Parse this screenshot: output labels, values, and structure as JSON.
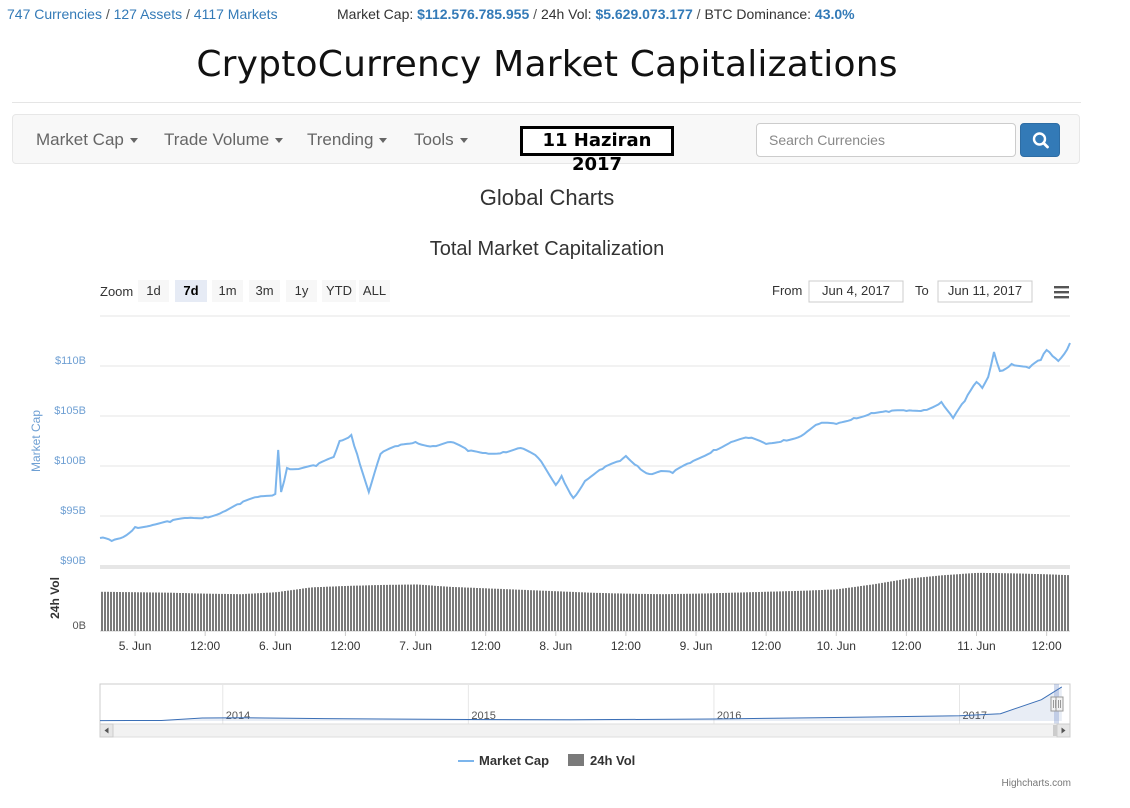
{
  "header": {
    "currencies": "747 Currencies",
    "assets": "127 Assets",
    "markets": "4117 Markets",
    "market_cap_label": "Market Cap:",
    "market_cap_value": "$112.576.785.955",
    "vol_label": "24h Vol:",
    "vol_value": "$5.629.073.177",
    "dominance_label": "BTC Dominance:",
    "dominance_value": "43.0%"
  },
  "site_title": "CryptoCurrency Market Capitalizations",
  "nav": {
    "items": [
      "Market Cap",
      "Trade Volume",
      "Trending",
      "Tools"
    ],
    "date_badge": "11 Haziran 2017",
    "search_placeholder": "Search Currencies",
    "search_icon": "search-icon"
  },
  "page_heading": "Global Charts",
  "chart_ui": {
    "zoom_label": "Zoom",
    "zoom_buttons": [
      "1d",
      "7d",
      "1m",
      "3m",
      "1y",
      "YTD",
      "ALL"
    ],
    "zoom_selected": "7d",
    "from_label": "From",
    "from_value": "Jun 4, 2017",
    "to_label": "To",
    "to_value": "Jun 11, 2017",
    "menu_icon": "hamburger-menu-icon",
    "credit": "Highcharts.com",
    "colors": {
      "market_cap": "#7cb5ec",
      "volume": "#434348"
    }
  },
  "chart_data": {
    "type": "line",
    "title": "Total Market Capitalization",
    "xlabel": "",
    "x_tick_labels": [
      "5. Jun",
      "12:00",
      "6. Jun",
      "12:00",
      "7. Jun",
      "12:00",
      "8. Jun",
      "12:00",
      "9. Jun",
      "12:00",
      "10. Jun",
      "12:00",
      "11. Jun",
      "12:00"
    ],
    "x_range": [
      "Jun 4, 2017 18:00",
      "Jun 11, 2017 16:00"
    ],
    "panes": [
      {
        "ylabel": "Market Cap",
        "y_tick_labels": [
          "$90B",
          "$95B",
          "$100B",
          "$105B",
          "$110B"
        ],
        "ylim": [
          90,
          115
        ],
        "unit": "billion USD",
        "grid": true,
        "series": [
          {
            "name": "Market Cap",
            "points": [
              [
                "Jun 4 18:00",
                92.8
              ],
              [
                "Jun 4 20:00",
                92.5
              ],
              [
                "Jun 4 22:00",
                92.9
              ],
              [
                "Jun 5 00:00",
                93.9
              ],
              [
                "Jun 5 03:00",
                94.1
              ],
              [
                "Jun 5 06:00",
                94.4
              ],
              [
                "Jun 5 09:00",
                94.8
              ],
              [
                "Jun 5 12:00",
                94.9
              ],
              [
                "Jun 5 15:00",
                95.4
              ],
              [
                "Jun 5 18:00",
                96.2
              ],
              [
                "Jun 5 21:00",
                96.9
              ],
              [
                "Jun 6 00:00",
                97.2
              ],
              [
                "Jun 6 00:30",
                101.6
              ],
              [
                "Jun 6 01:00",
                97.4
              ],
              [
                "Jun 6 02:00",
                99.8
              ],
              [
                "Jun 6 04:00",
                99.7
              ],
              [
                "Jun 6 07:00",
                100.0
              ],
              [
                "Jun 6 10:00",
                100.9
              ],
              [
                "Jun 6 11:00",
                102.5
              ],
              [
                "Jun 6 13:00",
                103.1
              ],
              [
                "Jun 6 14:00",
                101.2
              ],
              [
                "Jun 6 16:00",
                97.4
              ],
              [
                "Jun 6 18:00",
                101.2
              ],
              [
                "Jun 6 21:00",
                102.0
              ],
              [
                "Jun 7 00:00",
                102.4
              ],
              [
                "Jun 7 03:00",
                102.0
              ],
              [
                "Jun 7 06:00",
                102.4
              ],
              [
                "Jun 7 09:00",
                101.5
              ],
              [
                "Jun 7 12:00",
                101.3
              ],
              [
                "Jun 7 15:00",
                101.4
              ],
              [
                "Jun 7 18:00",
                101.8
              ],
              [
                "Jun 7 21:00",
                100.8
              ],
              [
                "Jun 8 00:00",
                98.1
              ],
              [
                "Jun 8 01:00",
                99.0
              ],
              [
                "Jun 8 03:00",
                96.8
              ],
              [
                "Jun 8 05:00",
                98.5
              ],
              [
                "Jun 8 08:00",
                99.7
              ],
              [
                "Jun 8 11:00",
                100.5
              ],
              [
                "Jun 8 12:00",
                101.0
              ],
              [
                "Jun 8 14:00",
                100.0
              ],
              [
                "Jun 8 16:00",
                99.2
              ],
              [
                "Jun 8 18:00",
                99.5
              ],
              [
                "Jun 8 20:00",
                99.3
              ],
              [
                "Jun 8 23:00",
                100.3
              ],
              [
                "Jun 9 03:00",
                101.6
              ],
              [
                "Jun 9 06:00",
                102.4
              ],
              [
                "Jun 9 09:00",
                102.8
              ],
              [
                "Jun 9 12:00",
                102.2
              ],
              [
                "Jun 9 15:00",
                102.6
              ],
              [
                "Jun 9 18:00",
                103.0
              ],
              [
                "Jun 9 21:00",
                104.2
              ],
              [
                "Jun 10 00:00",
                104.2
              ],
              [
                "Jun 10 03:00",
                104.8
              ],
              [
                "Jun 10 06:00",
                105.3
              ],
              [
                "Jun 10 09:00",
                105.4
              ],
              [
                "Jun 10 12:00",
                105.5
              ],
              [
                "Jun 10 15:00",
                105.6
              ],
              [
                "Jun 10 18:00",
                106.4
              ],
              [
                "Jun 10 20:00",
                104.8
              ],
              [
                "Jun 10 22:00",
                106.5
              ],
              [
                "Jun 11 00:00",
                108.4
              ],
              [
                "Jun 11 01:00",
                107.8
              ],
              [
                "Jun 11 02:00",
                108.9
              ],
              [
                "Jun 11 03:00",
                111.4
              ],
              [
                "Jun 11 04:00",
                109.5
              ],
              [
                "Jun 11 06:00",
                110.2
              ],
              [
                "Jun 11 09:00",
                109.8
              ],
              [
                "Jun 11 11:00",
                110.6
              ],
              [
                "Jun 11 12:00",
                111.6
              ],
              [
                "Jun 11 13:00",
                111.0
              ],
              [
                "Jun 11 14:00",
                110.5
              ],
              [
                "Jun 11 15:00",
                111.2
              ],
              [
                "Jun 11 16:00",
                112.3
              ]
            ]
          }
        ]
      },
      {
        "ylabel": "24h Vol",
        "y_tick_labels": [
          "0B"
        ],
        "type": "column",
        "series": [
          {
            "name": "24h Vol",
            "unit": "billion USD",
            "ylim": [
              0,
              6.5
            ],
            "points": [
              [
                "Jun 4 18:00",
                4.05
              ],
              [
                "Jun 5 00:00",
                4.0
              ],
              [
                "Jun 5 06:00",
                3.95
              ],
              [
                "Jun 5 12:00",
                3.85
              ],
              [
                "Jun 5 18:00",
                3.8
              ],
              [
                "Jun 6 00:00",
                4.0
              ],
              [
                "Jun 6 06:00",
                4.5
              ],
              [
                "Jun 6 12:00",
                4.65
              ],
              [
                "Jun 6 18:00",
                4.75
              ],
              [
                "Jun 7 00:00",
                4.8
              ],
              [
                "Jun 7 06:00",
                4.55
              ],
              [
                "Jun 7 12:00",
                4.4
              ],
              [
                "Jun 7 18:00",
                4.25
              ],
              [
                "Jun 8 00:00",
                4.1
              ],
              [
                "Jun 8 06:00",
                3.95
              ],
              [
                "Jun 8 12:00",
                3.85
              ],
              [
                "Jun 8 18:00",
                3.8
              ],
              [
                "Jun 9 00:00",
                3.85
              ],
              [
                "Jun 9 06:00",
                3.95
              ],
              [
                "Jun 9 12:00",
                4.05
              ],
              [
                "Jun 9 18:00",
                4.15
              ],
              [
                "Jun 10 00:00",
                4.3
              ],
              [
                "Jun 10 06:00",
                4.8
              ],
              [
                "Jun 10 12:00",
                5.4
              ],
              [
                "Jun 10 18:00",
                5.75
              ],
              [
                "Jun 11 00:00",
                6.0
              ],
              [
                "Jun 11 06:00",
                5.95
              ],
              [
                "Jun 11 12:00",
                5.85
              ],
              [
                "Jun 11 16:00",
                5.75
              ]
            ]
          }
        ]
      }
    ],
    "navigator": {
      "x_tick_labels": [
        "2014",
        "2015",
        "2016",
        "2017"
      ],
      "series": [
        {
          "name": "Market Cap",
          "points": [
            [
              "2013-07",
              1.3
            ],
            [
              "2013-10",
              1.6
            ],
            [
              "2013-12",
              10.0
            ],
            [
              "2014-02",
              11.0
            ],
            [
              "2014-06",
              8.0
            ],
            [
              "2015-01",
              5.0
            ],
            [
              "2015-06",
              4.0
            ],
            [
              "2016-01",
              6.5
            ],
            [
              "2016-06",
              11.0
            ],
            [
              "2017-01",
              17.0
            ],
            [
              "2017-03",
              24.0
            ],
            [
              "2017-05",
              70.0
            ],
            [
              "2017-06",
              112.0
            ]
          ]
        }
      ]
    },
    "legend": {
      "items": [
        "Market Cap",
        "24h Vol"
      ],
      "position": "bottom-center"
    }
  }
}
